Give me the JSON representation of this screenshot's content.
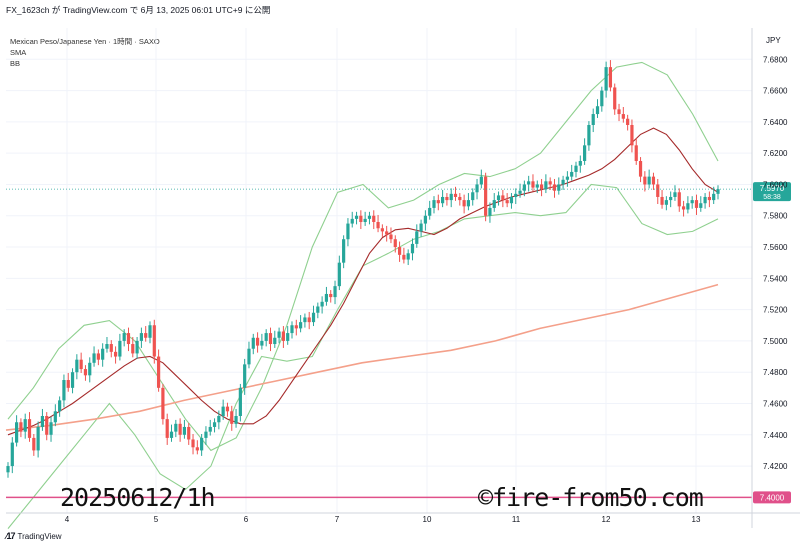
{
  "header": {
    "publisher_line": "FX_1623ch が TradingView.com で 6月 13, 2025 06:01 UTC+9 に公開"
  },
  "legend": {
    "symbol": "Mexican Peso/Japanese Yen · 1時間 · SAXO",
    "indicator_1": "SMA",
    "indicator_2": "BB"
  },
  "footer": {
    "brand": "TradingView",
    "brand_icon": "tradingview-logo-icon"
  },
  "annotations": {
    "date_text": "20250612/1h",
    "site_text": "©fire-from50.com"
  },
  "colors": {
    "up_candle": "#26a69a",
    "down_candle": "#ef5350",
    "sma_short": "#a52a2a",
    "sma_long": "#f4a08a",
    "bollinger": "#8fd08f",
    "horizontal_line": "#e0508a",
    "price_badge": "#26a69a",
    "level_badge": "#e0508a"
  },
  "chart_data": {
    "type": "candlestick",
    "currency": "JPY",
    "ylim": [
      7.39,
      7.7
    ],
    "y_ticks": [
      "7.6800",
      "7.6600",
      "7.6400",
      "7.6200",
      "7.6000",
      "7.5800",
      "7.5600",
      "7.5400",
      "7.5200",
      "7.5000",
      "7.4800",
      "7.4600",
      "7.4400",
      "7.4200"
    ],
    "x_tick_labels": [
      "4",
      "5",
      "6",
      "7",
      "10",
      "11",
      "12",
      "13"
    ],
    "last_price": {
      "value": "7.5970",
      "countdown": "58:38"
    },
    "horizontal_level": {
      "value": "7.4000"
    },
    "closes": [
      7.42,
      7.435,
      7.448,
      7.442,
      7.45,
      7.438,
      7.43,
      7.445,
      7.452,
      7.44,
      7.448,
      7.455,
      7.462,
      7.475,
      7.47,
      7.48,
      7.488,
      7.482,
      7.478,
      7.486,
      7.492,
      7.488,
      7.495,
      7.498,
      7.493,
      7.49,
      7.5,
      7.505,
      7.498,
      7.492,
      7.5,
      7.505,
      7.502,
      7.51,
      7.49,
      7.47,
      7.45,
      7.438,
      7.442,
      7.447,
      7.44,
      7.445,
      7.437,
      7.432,
      7.43,
      7.438,
      7.442,
      7.445,
      7.448,
      7.452,
      7.458,
      7.455,
      7.447,
      7.452,
      7.47,
      7.485,
      7.495,
      7.502,
      7.497,
      7.5,
      7.505,
      7.498,
      7.502,
      7.506,
      7.5,
      7.505,
      7.51,
      7.508,
      7.512,
      7.515,
      7.512,
      7.518,
      7.522,
      7.525,
      7.53,
      7.528,
      7.535,
      7.55,
      7.565,
      7.575,
      7.578,
      7.58,
      7.576,
      7.578,
      7.58,
      7.576,
      7.572,
      7.57,
      7.568,
      7.565,
      7.56,
      7.555,
      7.552,
      7.556,
      7.562,
      7.57,
      7.575,
      7.58,
      7.585,
      7.59,
      7.588,
      7.592,
      7.59,
      7.594,
      7.592,
      7.59,
      7.586,
      7.59,
      7.595,
      7.6,
      7.605,
      7.58,
      7.585,
      7.59,
      7.593,
      7.59,
      7.588,
      7.592,
      7.594,
      7.596,
      7.6,
      7.602,
      7.598,
      7.6,
      7.597,
      7.602,
      7.6,
      7.596,
      7.6,
      7.603,
      7.605,
      7.608,
      7.612,
      7.615,
      7.625,
      7.638,
      7.645,
      7.65,
      7.66,
      7.675,
      7.662,
      7.648,
      7.645,
      7.642,
      7.638,
      7.625,
      7.615,
      7.605,
      7.6,
      7.605,
      7.6,
      7.592,
      7.587,
      7.59,
      7.592,
      7.595,
      7.586,
      7.584,
      7.588,
      7.59,
      7.585,
      7.588,
      7.592,
      7.59,
      7.594,
      7.597
    ],
    "sma_short_values": [
      7.44,
      7.443,
      7.446,
      7.45,
      7.455,
      7.46,
      7.466,
      7.472,
      7.478,
      7.484,
      7.489,
      7.49,
      7.486,
      7.478,
      7.47,
      7.462,
      7.455,
      7.45,
      7.447,
      7.447,
      7.452,
      7.462,
      7.474,
      7.486,
      7.498,
      7.51,
      7.524,
      7.54,
      7.556,
      7.566,
      7.571,
      7.572,
      7.57,
      7.568,
      7.572,
      7.578,
      7.582,
      7.586,
      7.589,
      7.592,
      7.594,
      7.596,
      7.598,
      7.6,
      7.603,
      7.606,
      7.61,
      7.616,
      7.624,
      7.632,
      7.636,
      7.632,
      7.622,
      7.61,
      7.6,
      7.595
    ],
    "sma_long_values": [
      7.443,
      7.446,
      7.45,
      7.455,
      7.462,
      7.468,
      7.474,
      7.48,
      7.486,
      7.49,
      7.494,
      7.5,
      7.508,
      7.514,
      7.52,
      7.528,
      7.536
    ],
    "bb_upper": [
      7.45,
      7.47,
      7.495,
      7.51,
      7.513,
      7.5,
      7.475,
      7.45,
      7.43,
      7.438,
      7.47,
      7.51,
      7.56,
      7.595,
      7.6,
      7.585,
      7.59,
      7.6,
      7.607,
      7.605,
      7.61,
      7.62,
      7.64,
      7.66,
      7.675,
      7.678,
      7.67,
      7.645,
      7.615
    ],
    "bb_lower": [
      7.38,
      7.4,
      7.42,
      7.44,
      7.46,
      7.44,
      7.415,
      7.405,
      7.42,
      7.46,
      7.49,
      7.487,
      7.49,
      7.52,
      7.548,
      7.556,
      7.565,
      7.57,
      7.578,
      7.58,
      7.582,
      7.58,
      7.582,
      7.6,
      7.598,
      7.575,
      7.568,
      7.57,
      7.578
    ]
  }
}
